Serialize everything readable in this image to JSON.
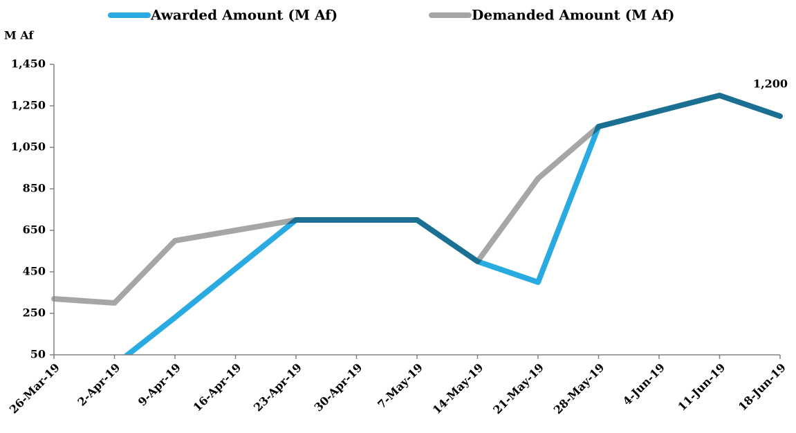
{
  "chart_data": {
    "type": "line",
    "y_label": "M Af",
    "categories": [
      "26-Mar-19",
      "2-Apr-19",
      "9-Apr-19",
      "16-Apr-19",
      "23-Apr-19",
      "30-Apr-19",
      "7-May-19",
      "14-May-19",
      "21-May-19",
      "28-May-19",
      "4-Jun-19",
      "11-Jun-19",
      "18-Jun-19"
    ],
    "series": [
      {
        "name": "Demanded Amount (M Af)",
        "color": "#a6a6a6",
        "values": [
          320,
          300,
          600,
          650,
          700,
          700,
          700,
          500,
          900,
          1150,
          1225,
          1300,
          1200
        ],
        "value_labels": [
          null,
          null,
          null,
          null,
          null,
          null,
          null,
          null,
          null,
          null,
          null,
          null,
          "1,200"
        ]
      },
      {
        "name": "Awarded Amount (M Af)",
        "color": "#29abe2",
        "values": [
          null,
          0,
          230,
          465,
          700,
          700,
          700,
          500,
          400,
          1150,
          1225,
          1300,
          1200
        ]
      }
    ],
    "legend_order": [
      1,
      0
    ],
    "overlap_blend": "multiply",
    "ylim": [
      50,
      1450
    ],
    "yticks": [
      50,
      250,
      450,
      650,
      850,
      {
        "value": 1050,
        "label": "1,050"
      },
      {
        "value": 1250,
        "label": "1,250"
      },
      {
        "value": 1450,
        "label": "1,450"
      }
    ]
  }
}
